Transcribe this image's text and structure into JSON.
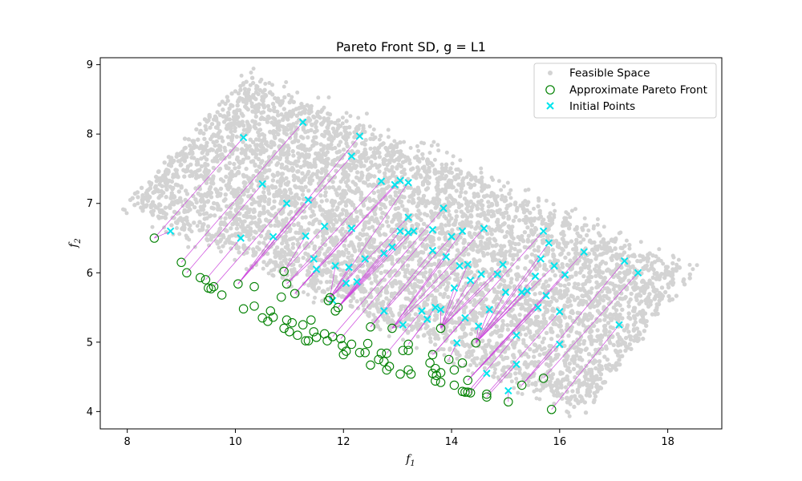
{
  "chart_data": {
    "type": "scatter",
    "title": "Pareto Front SD, g = L1",
    "xlabel": "f",
    "xlabel_sub": "1",
    "ylabel": "f",
    "ylabel_sub": "2",
    "xlim": [
      7.5,
      19.0
    ],
    "ylim": [
      3.75,
      9.1
    ],
    "xticks": [
      8,
      10,
      12,
      14,
      16,
      18
    ],
    "yticks": [
      4,
      5,
      6,
      7,
      8,
      9
    ],
    "grid": false,
    "legend_position": "top-right",
    "colors": {
      "feasible": "#d3d3d3",
      "pareto": "#008000",
      "initial": "#00e5ee",
      "path": "#cc44dd"
    },
    "feasible_region_corners": [
      [
        8.0,
        7.0
      ],
      [
        10.2,
        8.8
      ],
      [
        18.4,
        6.0
      ],
      [
        16.5,
        4.0
      ]
    ],
    "series": [
      {
        "name": "Feasible Space",
        "marker": "dot"
      },
      {
        "name": "Approximate Pareto Front",
        "marker": "open-circle",
        "points": [
          [
            8.5,
            6.5
          ],
          [
            9.0,
            6.15
          ],
          [
            9.1,
            6.0
          ],
          [
            9.35,
            5.93
          ],
          [
            9.45,
            5.9
          ],
          [
            9.5,
            5.78
          ],
          [
            9.55,
            5.77
          ],
          [
            9.6,
            5.8
          ],
          [
            9.75,
            5.68
          ],
          [
            10.05,
            5.84
          ],
          [
            10.15,
            5.48
          ],
          [
            10.35,
            5.8
          ],
          [
            10.35,
            5.52
          ],
          [
            10.5,
            5.35
          ],
          [
            10.6,
            5.3
          ],
          [
            10.65,
            5.45
          ],
          [
            10.7,
            5.36
          ],
          [
            10.85,
            5.65
          ],
          [
            10.9,
            6.02
          ],
          [
            10.9,
            5.2
          ],
          [
            10.95,
            5.84
          ],
          [
            10.95,
            5.32
          ],
          [
            11.0,
            5.15
          ],
          [
            11.05,
            5.28
          ],
          [
            11.1,
            5.7
          ],
          [
            11.15,
            5.1
          ],
          [
            11.25,
            5.25
          ],
          [
            11.3,
            5.02
          ],
          [
            11.35,
            5.02
          ],
          [
            11.4,
            5.32
          ],
          [
            11.45,
            5.15
          ],
          [
            11.5,
            5.07
          ],
          [
            11.65,
            5.12
          ],
          [
            11.7,
            5.02
          ],
          [
            11.72,
            5.6
          ],
          [
            11.75,
            5.64
          ],
          [
            11.8,
            5.08
          ],
          [
            11.85,
            5.45
          ],
          [
            11.9,
            5.5
          ],
          [
            11.95,
            5.05
          ],
          [
            11.98,
            4.95
          ],
          [
            12.0,
            4.82
          ],
          [
            12.05,
            4.87
          ],
          [
            12.15,
            4.97
          ],
          [
            12.3,
            4.85
          ],
          [
            12.4,
            4.85
          ],
          [
            12.45,
            4.98
          ],
          [
            12.5,
            4.67
          ],
          [
            12.5,
            5.22
          ],
          [
            12.65,
            4.75
          ],
          [
            12.7,
            4.84
          ],
          [
            12.75,
            4.72
          ],
          [
            12.8,
            4.84
          ],
          [
            12.8,
            4.6
          ],
          [
            12.85,
            4.65
          ],
          [
            12.9,
            5.2
          ],
          [
            13.05,
            4.54
          ],
          [
            13.1,
            4.88
          ],
          [
            13.2,
            4.97
          ],
          [
            13.2,
            4.88
          ],
          [
            13.2,
            4.6
          ],
          [
            13.25,
            4.54
          ],
          [
            13.6,
            4.7
          ],
          [
            13.65,
            4.82
          ],
          [
            13.65,
            4.55
          ],
          [
            13.7,
            4.44
          ],
          [
            13.7,
            4.62
          ],
          [
            13.72,
            4.52
          ],
          [
            13.8,
            4.56
          ],
          [
            13.8,
            4.42
          ],
          [
            13.8,
            5.2
          ],
          [
            13.95,
            4.75
          ],
          [
            14.05,
            4.38
          ],
          [
            14.05,
            4.6
          ],
          [
            14.2,
            4.7
          ],
          [
            14.2,
            4.29
          ],
          [
            14.25,
            4.28
          ],
          [
            14.3,
            4.45
          ],
          [
            14.3,
            4.28
          ],
          [
            14.35,
            4.27
          ],
          [
            14.45,
            4.99
          ],
          [
            14.65,
            4.25
          ],
          [
            14.65,
            4.21
          ],
          [
            15.05,
            4.14
          ],
          [
            15.3,
            4.38
          ],
          [
            15.7,
            4.48
          ],
          [
            15.85,
            4.03
          ]
        ]
      },
      {
        "name": "Initial Points",
        "marker": "x",
        "points": [
          [
            8.8,
            6.6
          ],
          [
            10.15,
            7.95
          ],
          [
            10.1,
            6.5
          ],
          [
            10.5,
            7.28
          ],
          [
            10.7,
            6.52
          ],
          [
            10.95,
            7.0
          ],
          [
            11.25,
            8.17
          ],
          [
            11.3,
            6.53
          ],
          [
            11.35,
            7.05
          ],
          [
            11.45,
            6.2
          ],
          [
            11.5,
            6.05
          ],
          [
            11.65,
            6.67
          ],
          [
            11.8,
            5.6
          ],
          [
            11.85,
            6.1
          ],
          [
            12.05,
            5.85
          ],
          [
            12.1,
            6.08
          ],
          [
            12.15,
            7.68
          ],
          [
            12.15,
            6.64
          ],
          [
            12.25,
            5.87
          ],
          [
            12.3,
            7.97
          ],
          [
            12.4,
            6.2
          ],
          [
            12.7,
            7.32
          ],
          [
            12.75,
            6.28
          ],
          [
            12.75,
            5.45
          ],
          [
            12.9,
            6.37
          ],
          [
            12.95,
            7.27
          ],
          [
            13.05,
            7.33
          ],
          [
            13.05,
            6.6
          ],
          [
            13.1,
            5.25
          ],
          [
            13.2,
            7.3
          ],
          [
            13.2,
            6.8
          ],
          [
            13.2,
            6.58
          ],
          [
            13.3,
            6.6
          ],
          [
            13.45,
            5.45
          ],
          [
            13.55,
            5.33
          ],
          [
            13.65,
            6.62
          ],
          [
            13.65,
            6.32
          ],
          [
            13.7,
            5.5
          ],
          [
            13.8,
            5.47
          ],
          [
            13.85,
            6.93
          ],
          [
            13.9,
            6.23
          ],
          [
            14.0,
            6.52
          ],
          [
            14.05,
            5.78
          ],
          [
            14.1,
            4.99
          ],
          [
            14.15,
            6.1
          ],
          [
            14.2,
            6.6
          ],
          [
            14.25,
            5.35
          ],
          [
            14.3,
            6.12
          ],
          [
            14.35,
            5.89
          ],
          [
            14.5,
            5.23
          ],
          [
            14.55,
            5.98
          ],
          [
            14.6,
            6.64
          ],
          [
            14.65,
            4.55
          ],
          [
            14.7,
            5.47
          ],
          [
            14.85,
            5.98
          ],
          [
            14.95,
            6.12
          ],
          [
            15.0,
            5.72
          ],
          [
            15.2,
            5.1
          ],
          [
            15.3,
            5.72
          ],
          [
            15.4,
            5.74
          ],
          [
            15.55,
            5.95
          ],
          [
            15.6,
            5.5
          ],
          [
            15.65,
            6.2
          ],
          [
            15.7,
            6.6
          ],
          [
            15.75,
            5.67
          ],
          [
            15.8,
            6.43
          ],
          [
            15.9,
            6.1
          ],
          [
            16.0,
            5.44
          ],
          [
            16.1,
            5.97
          ],
          [
            16.45,
            6.3
          ],
          [
            16.0,
            4.97
          ],
          [
            17.1,
            5.25
          ],
          [
            17.2,
            6.17
          ],
          [
            17.45,
            6.0
          ],
          [
            15.05,
            4.3
          ],
          [
            15.2,
            4.68
          ]
        ]
      }
    ]
  }
}
